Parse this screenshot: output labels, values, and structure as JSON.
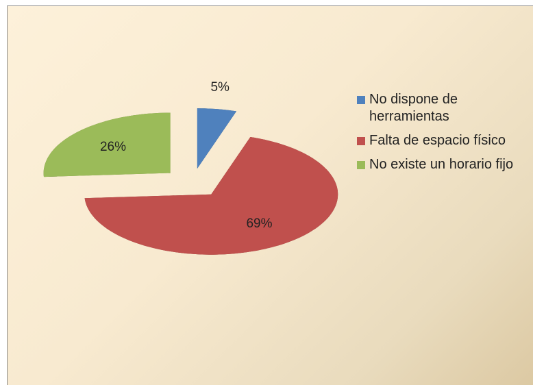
{
  "chart_data": {
    "type": "pie",
    "categories": [
      "No dispone de herramientas",
      "Falta de espacio físico",
      "No existe un horario fijo"
    ],
    "values": [
      5,
      69,
      26
    ],
    "value_labels": [
      "5%",
      "69%",
      "26%"
    ],
    "colors": [
      "#4f81bd",
      "#c0504d",
      "#9bbb59"
    ],
    "legend": "right"
  }
}
